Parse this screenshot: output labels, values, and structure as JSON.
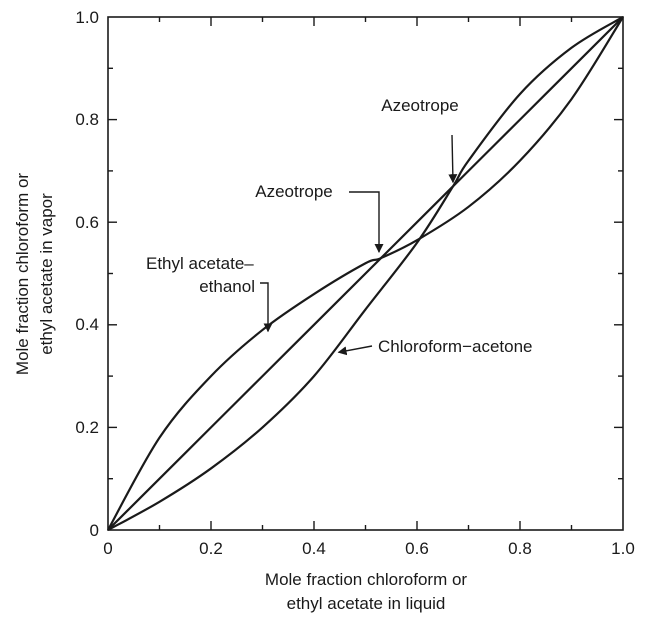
{
  "chart_data": {
    "type": "line",
    "title": "",
    "xlabel_lines": [
      "Mole fraction chloroform or",
      "ethyl acetate in liquid"
    ],
    "ylabel_lines": [
      "Mole fraction chloroform or",
      "ethyl acetate in vapor"
    ],
    "xlim": [
      0,
      1
    ],
    "ylim": [
      0,
      1
    ],
    "x_ticks": [
      "0",
      "0.2",
      "0.4",
      "0.6",
      "0.8",
      "1.0"
    ],
    "y_ticks": [
      "0",
      "0.2",
      "0.4",
      "0.6",
      "0.8",
      "1.0"
    ],
    "grid": false,
    "legend": "none",
    "line_color": "#1a1a1a",
    "series": [
      {
        "x": [
          0.0,
          0.1,
          0.2,
          0.3,
          0.4,
          0.5,
          0.6,
          0.7,
          0.8,
          0.9,
          1.0
        ],
        "y": [
          0.0,
          0.1,
          0.2,
          0.3,
          0.4,
          0.5,
          0.6,
          0.7,
          0.8,
          0.9,
          1.0
        ]
      },
      {
        "x": [
          0.0,
          0.1,
          0.2,
          0.3,
          0.4,
          0.5,
          0.53,
          0.6,
          0.7,
          0.8,
          0.9,
          1.0
        ],
        "y": [
          0.0,
          0.18,
          0.3,
          0.39,
          0.46,
          0.52,
          0.53,
          0.565,
          0.63,
          0.72,
          0.84,
          1.0
        ]
      },
      {
        "x": [
          0.0,
          0.1,
          0.2,
          0.3,
          0.4,
          0.5,
          0.6,
          0.67,
          0.7,
          0.8,
          0.9,
          1.0
        ],
        "y": [
          0.0,
          0.055,
          0.12,
          0.2,
          0.3,
          0.43,
          0.56,
          0.67,
          0.72,
          0.85,
          0.94,
          1.0
        ]
      }
    ],
    "annotations": [
      {
        "id": "azeotrope-upper",
        "lines": [
          "Azeotrope"
        ],
        "point": [
          0.67,
          0.67
        ]
      },
      {
        "id": "azeotrope-lower",
        "lines": [
          "Azeotrope"
        ],
        "point": [
          0.53,
          0.53
        ]
      },
      {
        "id": "ethyl-acetate-ethanol",
        "lines": [
          "Ethyl acetate–",
          "ethanol"
        ],
        "point": [
          0.31,
          0.395
        ]
      },
      {
        "id": "chloroform-acetone",
        "lines": [
          "Chloroform−acetone"
        ],
        "point": [
          0.44,
          0.345
        ]
      }
    ]
  }
}
